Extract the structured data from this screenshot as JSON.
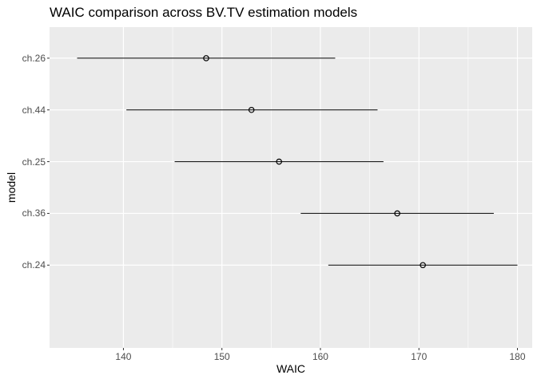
{
  "chart_data": {
    "type": "scatter",
    "title": "WAIC comparison across BV.TV estimation models",
    "xlabel": "WAIC",
    "ylabel": "model",
    "xlim": [
      132.5,
      181.5
    ],
    "x_ticks": [
      "140",
      "150",
      "160",
      "170",
      "180"
    ],
    "grid": true,
    "categories": [
      "ch.26",
      "ch.44",
      "ch.25",
      "ch.36",
      "ch.24"
    ],
    "series": [
      {
        "points": [
          {
            "model": "ch.26",
            "waic": 148.4,
            "lower": 135.3,
            "upper": 161.5
          },
          {
            "model": "ch.44",
            "waic": 153.0,
            "lower": 140.3,
            "upper": 165.8
          },
          {
            "model": "ch.25",
            "waic": 155.8,
            "lower": 145.2,
            "upper": 166.4
          },
          {
            "model": "ch.36",
            "waic": 167.8,
            "lower": 158.0,
            "upper": 177.6
          },
          {
            "model": "ch.24",
            "waic": 170.4,
            "lower": 160.8,
            "upper": 180.0
          }
        ]
      }
    ],
    "colors": {
      "panel": "#EBEBEB",
      "grid": "#FFFFFF",
      "line": "#000000",
      "tick_text": "#4D4D4D"
    }
  }
}
